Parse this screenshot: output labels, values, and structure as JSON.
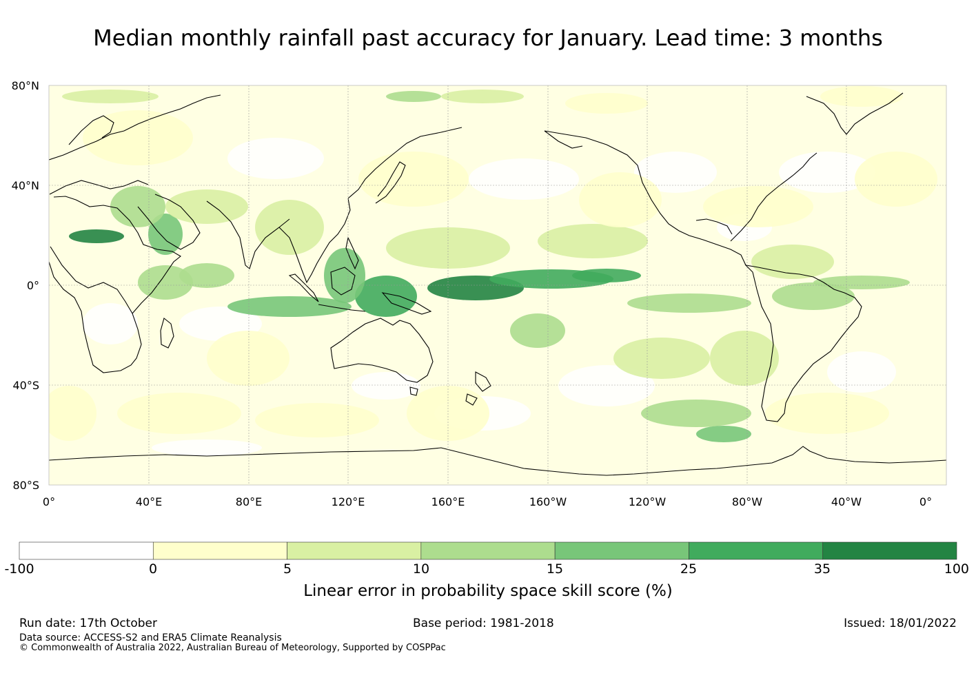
{
  "title": "Median monthly rainfall past accuracy for January. Lead time: 3 months",
  "map": {
    "lat_labels": [
      "80°N",
      "40°N",
      "0°",
      "40°S",
      "80°S"
    ],
    "lon_labels": [
      "0°",
      "40°E",
      "80°E",
      "120°E",
      "160°E",
      "160°W",
      "120°W",
      "80°W",
      "40°W",
      "0°"
    ]
  },
  "colorbar": {
    "colors": [
      "#ffffff",
      "#ffffcc",
      "#d9f0a3",
      "#addd8e",
      "#78c679",
      "#41ab5d",
      "#238443"
    ],
    "tick_labels": [
      "-100",
      "0",
      "5",
      "10",
      "15",
      "25",
      "35",
      "100"
    ],
    "title": "Linear error in probability space skill score (%)"
  },
  "footer": {
    "run_date": "Run date: 17th October",
    "base_period": "Base period: 1981-2018",
    "issued": "Issued: 18/01/2022",
    "data_source": "Data source: ACCESS-S2 and ERA5 Climate Reanalysis",
    "copyright": "© Commonwealth of Australia 2022, Australian Bureau of Meteorology, Supported by COSPPac"
  }
}
